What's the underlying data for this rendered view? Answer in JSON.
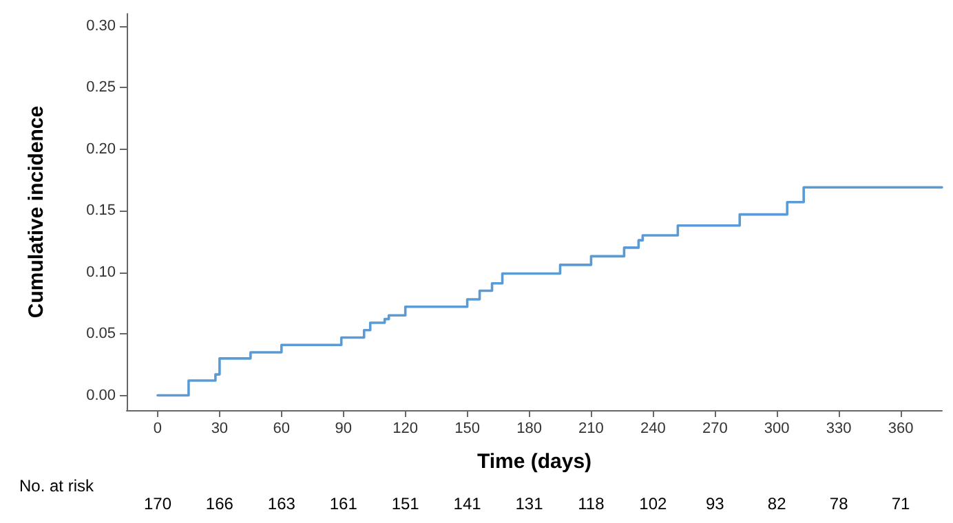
{
  "chart_data": {
    "type": "step",
    "xlabel": "Time (days)",
    "ylabel": "Cumulative incidence",
    "series": [
      {
        "color": "#5b9bd5",
        "x": [
          0,
          15,
          28,
          30,
          45,
          60,
          89,
          100,
          103,
          110,
          112,
          120,
          150,
          156,
          162,
          167,
          195,
          210,
          226,
          233,
          235,
          252,
          282,
          305,
          313,
          380
        ],
        "values": [
          0,
          0.012,
          0.017,
          0.03,
          0.035,
          0.041,
          0.047,
          0.053,
          0.059,
          0.062,
          0.065,
          0.072,
          0.078,
          0.085,
          0.091,
          0.099,
          0.106,
          0.113,
          0.12,
          0.126,
          0.13,
          0.138,
          0.147,
          0.157,
          0.169,
          0.169
        ]
      }
    ],
    "xlim": [
      -15,
      380
    ],
    "xticks": [
      0,
      30,
      60,
      90,
      120,
      150,
      180,
      210,
      240,
      270,
      300,
      330,
      360
    ],
    "ylim": [
      -0.012,
      0.31
    ],
    "yticks": [
      {
        "value": 0,
        "label": "0.00"
      },
      {
        "value": 0.05,
        "label": "0.05"
      },
      {
        "value": 0.1,
        "label": "0.10"
      },
      {
        "value": 0.15,
        "label": "0.15"
      },
      {
        "value": 0.2,
        "label": "0.20"
      },
      {
        "value": 0.25,
        "label": "0.25"
      },
      {
        "value": 0.3,
        "label": "0.30"
      }
    ],
    "grid": false,
    "marker": "none",
    "line_style": "solid",
    "annotations": [
      "No. at risk",
      "170",
      "166",
      "163",
      "161",
      "151",
      "141",
      "131",
      "118",
      "102",
      "93",
      "82",
      "78",
      "71"
    ]
  }
}
